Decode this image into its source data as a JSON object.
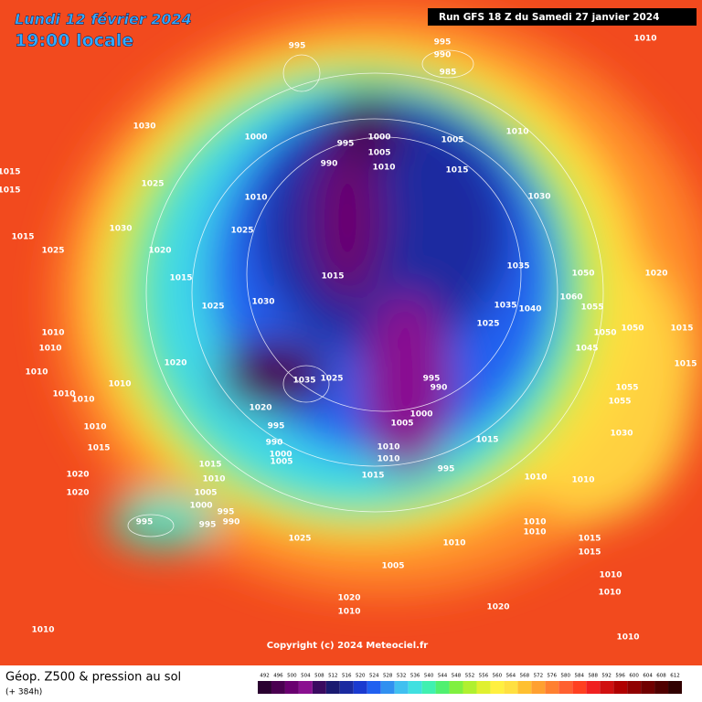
{
  "header": {
    "date": "Lundi 12 février 2024",
    "time": "19:00 locale",
    "run": "Run GFS 18 Z du Samedi 27 janvier 2024"
  },
  "copyright": "Copyright (c) 2024 Meteociel.fr",
  "footer": {
    "title": "Géop. Z500 & pression au sol",
    "subtitle": "(+ 384h)"
  },
  "scale": {
    "values": [
      492,
      496,
      500,
      504,
      508,
      512,
      516,
      520,
      524,
      528,
      532,
      536,
      540,
      544,
      548,
      552,
      556,
      560,
      564,
      568,
      572,
      576,
      580,
      584,
      588,
      592,
      596,
      600,
      604,
      608,
      612
    ],
    "colors": [
      "#2a0030",
      "#4a0050",
      "#6a0070",
      "#8a1090",
      "#3a0a60",
      "#1a1a70",
      "#1a2aa0",
      "#1a3ad0",
      "#2060f0",
      "#3090f0",
      "#40c0f0",
      "#40e0e0",
      "#40f0b0",
      "#50f070",
      "#80f040",
      "#b0f030",
      "#e0f030",
      "#fff040",
      "#ffe040",
      "#ffc030",
      "#ffa030",
      "#ff8030",
      "#ff6030",
      "#ff4020",
      "#f02020",
      "#d01010",
      "#b00000",
      "#900000",
      "#700000",
      "#500000",
      "#300000"
    ]
  },
  "pressure_labels": [
    995,
    995,
    990,
    985,
    1010,
    1030,
    1000,
    995,
    1000,
    1005,
    1005,
    1010,
    990,
    1010,
    1015,
    1015,
    1015,
    1025,
    1010,
    1030,
    1030,
    1025,
    1015,
    1020,
    1025,
    1035,
    1050,
    1020,
    1015,
    1015,
    1030,
    1025,
    1035,
    1040,
    1060,
    1055,
    1025,
    1050,
    1050,
    1015,
    1010,
    1010,
    1045,
    1020,
    1015,
    1010,
    1035,
    1025,
    995,
    990,
    1055,
    1055,
    1010,
    1010,
    1010,
    1000,
    1020,
    1005,
    995,
    1010,
    1030,
    990,
    1015,
    1015,
    1010,
    1000,
    1005,
    1010,
    1015,
    995,
    1015,
    1010,
    1010,
    1010,
    1020,
    1020,
    1005,
    1000,
    995,
    990,
    995,
    995,
    1010,
    1010,
    1025,
    1010,
    1015,
    1015,
    1005,
    1010,
    1010,
    1020,
    1020,
    1010,
    1010,
    1010
  ]
}
